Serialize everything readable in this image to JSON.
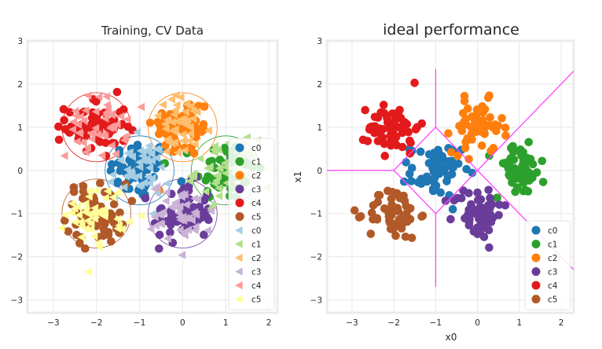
{
  "chart_data": [
    {
      "type": "scatter",
      "title": "Training, CV Data",
      "xlabel": "",
      "ylabel": "",
      "xlim": [
        -3.6,
        2.2
      ],
      "ylim": [
        -3.3,
        3.0
      ],
      "xticks": [
        "−3",
        "−2",
        "−1",
        "0",
        "1",
        "2"
      ],
      "xtick_values": [
        -3,
        -2,
        -1,
        0,
        1,
        2
      ],
      "yticks": [
        "−3",
        "−2",
        "−1",
        "0",
        "1",
        "2",
        "3"
      ],
      "ytick_values": [
        -3,
        -2,
        -1,
        0,
        1,
        2,
        3
      ],
      "grid": true,
      "legend_position": "bottom-right",
      "series": [
        {
          "name": "c0",
          "kind": "train",
          "marker": "circle",
          "color": "#1f77b4",
          "center": [
            -1,
            0
          ],
          "std": 0.35,
          "count": 60
        },
        {
          "name": "c1",
          "kind": "train",
          "marker": "circle",
          "color": "#2ca02c",
          "center": [
            1,
            0
          ],
          "std": 0.35,
          "count": 60
        },
        {
          "name": "c2",
          "kind": "train",
          "marker": "circle",
          "color": "#ff7f0e",
          "center": [
            0,
            1
          ],
          "std": 0.35,
          "count": 60
        },
        {
          "name": "c3",
          "kind": "train",
          "marker": "circle",
          "color": "#6a3d9a",
          "center": [
            0,
            -1
          ],
          "std": 0.35,
          "count": 60
        },
        {
          "name": "c4",
          "kind": "train",
          "marker": "circle",
          "color": "#e31a1c",
          "center": [
            -2,
            1
          ],
          "std": 0.35,
          "count": 60
        },
        {
          "name": "c5",
          "kind": "train",
          "marker": "circle",
          "color": "#b15928",
          "center": [
            -2,
            -1
          ],
          "std": 0.35,
          "count": 60
        },
        {
          "name": "c0",
          "kind": "cv",
          "marker": "triangle-left",
          "color": "#a6cee3",
          "center": [
            -1,
            0
          ],
          "std": 0.35,
          "count": 45
        },
        {
          "name": "c1",
          "kind": "cv",
          "marker": "triangle-left",
          "color": "#b2df8a",
          "center": [
            1,
            0
          ],
          "std": 0.35,
          "count": 45
        },
        {
          "name": "c2",
          "kind": "cv",
          "marker": "triangle-left",
          "color": "#fdbf6f",
          "center": [
            0,
            1
          ],
          "std": 0.35,
          "count": 45
        },
        {
          "name": "c3",
          "kind": "cv",
          "marker": "triangle-left",
          "color": "#cab2d6",
          "center": [
            0,
            -1
          ],
          "std": 0.35,
          "count": 45
        },
        {
          "name": "c4",
          "kind": "cv",
          "marker": "triangle-left",
          "color": "#fb9a99",
          "center": [
            -2,
            1
          ],
          "std": 0.35,
          "count": 45
        },
        {
          "name": "c5",
          "kind": "cv",
          "marker": "triangle-left",
          "color": "#ffff99",
          "center": [
            -2,
            -1
          ],
          "std": 0.35,
          "count": 45
        }
      ],
      "circles": [
        {
          "center": [
            -1,
            0
          ],
          "radius": 0.8,
          "color": "#1f77b4"
        },
        {
          "center": [
            1,
            0
          ],
          "radius": 0.8,
          "color": "#2ca02c"
        },
        {
          "center": [
            0,
            1
          ],
          "radius": 0.8,
          "color": "#ff7f0e"
        },
        {
          "center": [
            0,
            -1
          ],
          "radius": 0.8,
          "color": "#6a3d9a"
        },
        {
          "center": [
            -2,
            1
          ],
          "radius": 0.8,
          "color": "#e31a1c"
        },
        {
          "center": [
            -2,
            -1
          ],
          "radius": 0.8,
          "color": "#b15928"
        }
      ]
    },
    {
      "type": "scatter",
      "title": "ideal performance",
      "xlabel": "x0",
      "ylabel": "x1",
      "xlim": [
        -3.6,
        2.3
      ],
      "ylim": [
        -3.3,
        3.0
      ],
      "xticks": [
        "−3",
        "−2",
        "−1",
        "0",
        "1",
        "2"
      ],
      "xtick_values": [
        -3,
        -2,
        -1,
        0,
        1,
        2
      ],
      "yticks": [
        "−3",
        "−2",
        "−1",
        "0",
        "1",
        "2",
        "3"
      ],
      "ytick_values": [
        -3,
        -2,
        -1,
        0,
        1,
        2,
        3
      ],
      "grid": true,
      "legend_position": "bottom-right",
      "series": [
        {
          "name": "c0",
          "marker": "circle",
          "color": "#1f77b4",
          "center": [
            -1,
            0
          ],
          "std": 0.3,
          "count": 60
        },
        {
          "name": "c1",
          "marker": "circle",
          "color": "#2ca02c",
          "center": [
            1,
            0
          ],
          "std": 0.3,
          "count": 60
        },
        {
          "name": "c2",
          "marker": "circle",
          "color": "#ff7f0e",
          "center": [
            0,
            1
          ],
          "std": 0.3,
          "count": 60
        },
        {
          "name": "c3",
          "marker": "circle",
          "color": "#6a3d9a",
          "center": [
            0,
            -1
          ],
          "std": 0.3,
          "count": 60
        },
        {
          "name": "c4",
          "marker": "circle",
          "color": "#e31a1c",
          "center": [
            -2,
            1
          ],
          "std": 0.3,
          "count": 60
        },
        {
          "name": "c5",
          "marker": "circle",
          "color": "#b15928",
          "center": [
            -2,
            -1
          ],
          "std": 0.3,
          "count": 60
        }
      ],
      "boundaries": {
        "color": "#ff44ff",
        "segments": [
          [
            [
              -3.6,
              0
            ],
            [
              -2,
              0
            ]
          ],
          [
            [
              -2,
              0
            ],
            [
              -1,
              1
            ]
          ],
          [
            [
              -1,
              1
            ],
            [
              -1,
              2.35
            ]
          ],
          [
            [
              -1,
              1
            ],
            [
              0,
              0
            ]
          ],
          [
            [
              -2,
              0
            ],
            [
              -1,
              -1
            ]
          ],
          [
            [
              -1,
              -1
            ],
            [
              -1,
              -2.7
            ]
          ],
          [
            [
              -1,
              -1
            ],
            [
              0,
              0
            ]
          ],
          [
            [
              0,
              0
            ],
            [
              2.3,
              2.3
            ]
          ],
          [
            [
              0,
              0
            ],
            [
              2.3,
              -2.3
            ]
          ]
        ]
      }
    }
  ]
}
